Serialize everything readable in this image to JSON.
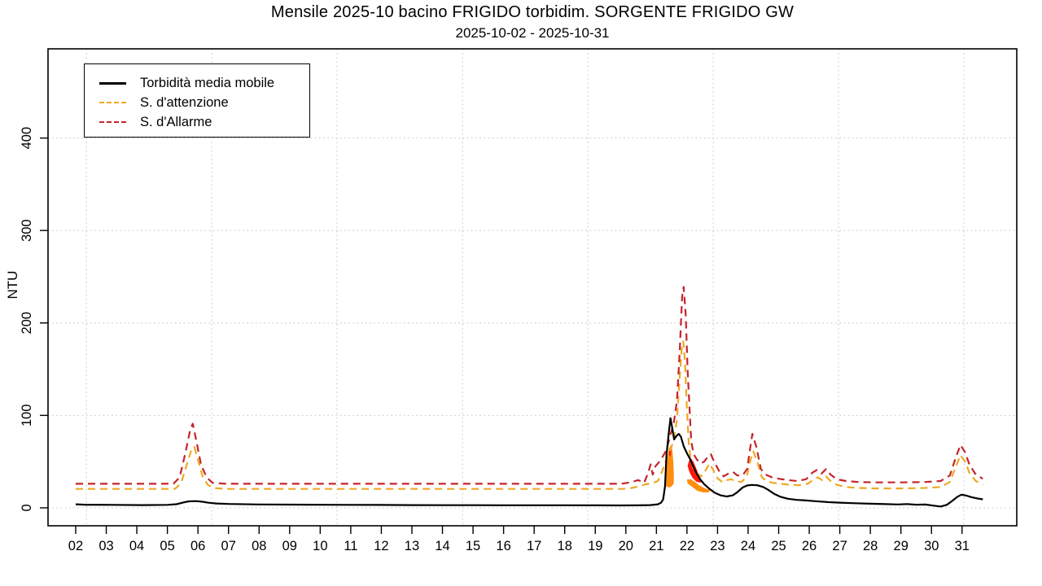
{
  "chart_data": {
    "type": "line",
    "title": "Mensile 2025-10 bacino FRIGIDO torbidim. SORGENTE FRIGIDO GW",
    "subtitle": "2025-10-02 - 2025-10-31",
    "ylabel": "NTU",
    "xlabel": "",
    "x_unit": "day of October 2025",
    "xlim": [
      1.095,
      32.79
    ],
    "ylim": [
      -19.4,
      496.5
    ],
    "x_ticks": {
      "values": [
        2,
        3,
        4,
        5,
        6,
        7,
        8,
        9,
        10,
        11,
        12,
        13,
        14,
        15,
        16,
        17,
        18,
        19,
        20,
        21,
        22,
        23,
        24,
        25,
        26,
        27,
        28,
        29,
        30,
        31
      ],
      "labels": [
        "02",
        "03",
        "04",
        "05",
        "06",
        "07",
        "08",
        "09",
        "10",
        "11",
        "12",
        "13",
        "14",
        "15",
        "16",
        "17",
        "18",
        "19",
        "20",
        "21",
        "22",
        "23",
        "24",
        "25",
        "26",
        "27",
        "28",
        "29",
        "30",
        "31"
      ]
    },
    "y_ticks": {
      "values": [
        0,
        100,
        200,
        300,
        400
      ],
      "labels": [
        "0",
        "100",
        "200",
        "300",
        "400"
      ]
    },
    "grid": {
      "color": "#c8c8c8",
      "x_days": [
        2.35,
        6.45,
        10.55,
        14.66,
        18.76,
        22.86,
        26.96,
        31.06
      ],
      "y_values": [
        0,
        100,
        200,
        300,
        400
      ]
    },
    "series": [
      {
        "name": "S. d'attenzione",
        "color": "#EEA823",
        "dash": "9 6",
        "width": 2.2,
        "points": [
          [
            2.0,
            20.5
          ],
          [
            5.25,
            20.5
          ],
          [
            5.45,
            27
          ],
          [
            5.62,
            45
          ],
          [
            5.78,
            62
          ],
          [
            5.88,
            66
          ],
          [
            6.0,
            52
          ],
          [
            6.15,
            34
          ],
          [
            6.32,
            25
          ],
          [
            6.5,
            21.5
          ],
          [
            6.9,
            20.5
          ],
          [
            19.9,
            20.5
          ],
          [
            20.2,
            21.5
          ],
          [
            20.45,
            23.5
          ],
          [
            20.65,
            25.5
          ],
          [
            20.85,
            26.5
          ],
          [
            21.05,
            29
          ],
          [
            21.17,
            38
          ],
          [
            21.3,
            50
          ],
          [
            21.45,
            62
          ],
          [
            21.57,
            73
          ],
          [
            21.67,
            95
          ],
          [
            21.76,
            140
          ],
          [
            21.84,
            178
          ],
          [
            21.88,
            180
          ],
          [
            21.94,
            155
          ],
          [
            22.0,
            105
          ],
          [
            22.06,
            70
          ],
          [
            22.13,
            50
          ],
          [
            22.22,
            42
          ],
          [
            22.34,
            37
          ],
          [
            22.47,
            34
          ],
          [
            22.6,
            40
          ],
          [
            22.74,
            48
          ],
          [
            22.87,
            40
          ],
          [
            23.0,
            32
          ],
          [
            23.15,
            28
          ],
          [
            23.3,
            30
          ],
          [
            23.45,
            31
          ],
          [
            23.6,
            28.5
          ],
          [
            23.78,
            28
          ],
          [
            23.95,
            33
          ],
          [
            24.08,
            52
          ],
          [
            24.17,
            61
          ],
          [
            24.3,
            50
          ],
          [
            24.45,
            33
          ],
          [
            24.6,
            29
          ],
          [
            24.82,
            27
          ],
          [
            25.05,
            26
          ],
          [
            25.35,
            25
          ],
          [
            25.65,
            24.5
          ],
          [
            25.95,
            26
          ],
          [
            26.15,
            31
          ],
          [
            26.28,
            33
          ],
          [
            26.42,
            30
          ],
          [
            26.55,
            34
          ],
          [
            26.7,
            29
          ],
          [
            26.9,
            25
          ],
          [
            27.2,
            22.5
          ],
          [
            27.6,
            21.5
          ],
          [
            28.2,
            21
          ],
          [
            29.0,
            21
          ],
          [
            29.8,
            21.5
          ],
          [
            30.3,
            22.5
          ],
          [
            30.6,
            28
          ],
          [
            30.8,
            45
          ],
          [
            30.95,
            57
          ],
          [
            31.1,
            50
          ],
          [
            31.25,
            37
          ],
          [
            31.45,
            29
          ],
          [
            31.68,
            25
          ]
        ]
      },
      {
        "name": "S. d'Allarme",
        "color": "#C5242B",
        "dash": "9 6",
        "width": 2.2,
        "points": [
          [
            2.0,
            26
          ],
          [
            5.2,
            26
          ],
          [
            5.4,
            33
          ],
          [
            5.58,
            58
          ],
          [
            5.75,
            85
          ],
          [
            5.83,
            91
          ],
          [
            5.95,
            72
          ],
          [
            6.1,
            47
          ],
          [
            6.28,
            33
          ],
          [
            6.48,
            27
          ],
          [
            6.9,
            26
          ],
          [
            19.85,
            26
          ],
          [
            20.15,
            27.5
          ],
          [
            20.4,
            30
          ],
          [
            20.6,
            27
          ],
          [
            20.73,
            38
          ],
          [
            20.81,
            47
          ],
          [
            20.88,
            36
          ],
          [
            20.97,
            45
          ],
          [
            21.1,
            50
          ],
          [
            21.2,
            55
          ],
          [
            21.32,
            62
          ],
          [
            21.45,
            78
          ],
          [
            21.57,
            92
          ],
          [
            21.67,
            115
          ],
          [
            21.76,
            168
          ],
          [
            21.84,
            228
          ],
          [
            21.89,
            239
          ],
          [
            21.96,
            208
          ],
          [
            22.02,
            150
          ],
          [
            22.08,
            110
          ],
          [
            22.14,
            72
          ],
          [
            22.22,
            58
          ],
          [
            22.33,
            52
          ],
          [
            22.45,
            48
          ],
          [
            22.56,
            50
          ],
          [
            22.68,
            55
          ],
          [
            22.78,
            58
          ],
          [
            22.9,
            49
          ],
          [
            23.05,
            40
          ],
          [
            23.2,
            34
          ],
          [
            23.35,
            37
          ],
          [
            23.5,
            39
          ],
          [
            23.65,
            35
          ],
          [
            23.82,
            35
          ],
          [
            23.97,
            42
          ],
          [
            24.07,
            65
          ],
          [
            24.14,
            80
          ],
          [
            24.27,
            66
          ],
          [
            24.42,
            42
          ],
          [
            24.57,
            36
          ],
          [
            24.78,
            33
          ],
          [
            25.0,
            31.5
          ],
          [
            25.3,
            30
          ],
          [
            25.6,
            29
          ],
          [
            25.9,
            31
          ],
          [
            26.1,
            38
          ],
          [
            26.25,
            41
          ],
          [
            26.4,
            37
          ],
          [
            26.55,
            42
          ],
          [
            26.7,
            36
          ],
          [
            26.9,
            31
          ],
          [
            27.2,
            29
          ],
          [
            27.6,
            28
          ],
          [
            28.2,
            27.5
          ],
          [
            29.0,
            27.5
          ],
          [
            29.8,
            28
          ],
          [
            30.3,
            29
          ],
          [
            30.6,
            35
          ],
          [
            30.8,
            55
          ],
          [
            30.95,
            68
          ],
          [
            31.1,
            60
          ],
          [
            31.25,
            46
          ],
          [
            31.45,
            36
          ],
          [
            31.68,
            31.5
          ]
        ]
      },
      {
        "name": "Torbidità media mobile",
        "color": "#000000",
        "dash": null,
        "width": 2.2,
        "points": [
          [
            2.0,
            3.8
          ],
          [
            2.3,
            3.4
          ],
          [
            3.2,
            3.2
          ],
          [
            4.2,
            3.0
          ],
          [
            5.0,
            3.2
          ],
          [
            5.3,
            3.9
          ],
          [
            5.5,
            5.6
          ],
          [
            5.7,
            7.0
          ],
          [
            5.95,
            7.3
          ],
          [
            6.15,
            6.6
          ],
          [
            6.35,
            5.5
          ],
          [
            6.6,
            4.7
          ],
          [
            7.0,
            4.2
          ],
          [
            8.0,
            3.7
          ],
          [
            9.0,
            3.5
          ],
          [
            10.0,
            3.3
          ],
          [
            11.0,
            3.2
          ],
          [
            12.0,
            3.1
          ],
          [
            13.0,
            3.0
          ],
          [
            14.0,
            2.9
          ],
          [
            15.0,
            2.9
          ],
          [
            16.0,
            2.8
          ],
          [
            17.0,
            2.8
          ],
          [
            18.0,
            2.8
          ],
          [
            19.0,
            2.7
          ],
          [
            19.8,
            2.6
          ],
          [
            20.4,
            2.7
          ],
          [
            20.8,
            3.0
          ],
          [
            21.05,
            3.8
          ],
          [
            21.15,
            5.5
          ],
          [
            21.22,
            9.0
          ],
          [
            21.28,
            23.0
          ],
          [
            21.33,
            57.0
          ],
          [
            21.4,
            80.0
          ],
          [
            21.46,
            97.0
          ],
          [
            21.52,
            86.0
          ],
          [
            21.58,
            74.0
          ],
          [
            21.65,
            77.5
          ],
          [
            21.73,
            80.0
          ],
          [
            21.8,
            77.0
          ],
          [
            21.9,
            66.0
          ],
          [
            22.0,
            59.0
          ],
          [
            22.1,
            53.0
          ],
          [
            22.2,
            45.0
          ],
          [
            22.32,
            37.0
          ],
          [
            22.45,
            30.0
          ],
          [
            22.58,
            25.0
          ],
          [
            22.72,
            21.0
          ],
          [
            22.9,
            16.5
          ],
          [
            23.1,
            13.5
          ],
          [
            23.3,
            12.3
          ],
          [
            23.5,
            13.5
          ],
          [
            23.65,
            17.0
          ],
          [
            23.82,
            22.0
          ],
          [
            23.97,
            24.2
          ],
          [
            24.12,
            24.8
          ],
          [
            24.3,
            24.4
          ],
          [
            24.5,
            22.5
          ],
          [
            24.65,
            19.6
          ],
          [
            24.85,
            15.2
          ],
          [
            25.05,
            12.0
          ],
          [
            25.3,
            9.8
          ],
          [
            25.6,
            8.6
          ],
          [
            25.9,
            8.0
          ],
          [
            26.2,
            7.2
          ],
          [
            26.6,
            6.2
          ],
          [
            27.0,
            5.6
          ],
          [
            27.5,
            5.0
          ],
          [
            28.0,
            4.5
          ],
          [
            28.5,
            4.0
          ],
          [
            28.9,
            3.7
          ],
          [
            29.2,
            4.1
          ],
          [
            29.5,
            3.4
          ],
          [
            29.8,
            3.6
          ],
          [
            30.05,
            2.4
          ],
          [
            30.3,
            1.5
          ],
          [
            30.5,
            3.2
          ],
          [
            30.68,
            7.5
          ],
          [
            30.85,
            12.0
          ],
          [
            30.98,
            14.2
          ],
          [
            31.15,
            13.2
          ],
          [
            31.3,
            11.6
          ],
          [
            31.5,
            10.2
          ],
          [
            31.68,
            9.2
          ]
        ]
      }
    ],
    "exceedance_fills": [
      {
        "name": "attention-exceedance-fill",
        "color": "#FF8E10",
        "points": [
          [
            22.0,
            30.8
          ],
          [
            22.13,
            30.8
          ],
          [
            22.26,
            28.1
          ],
          [
            22.39,
            24.6
          ],
          [
            22.53,
            22.0
          ],
          [
            22.66,
            20.2
          ],
          [
            22.77,
            19.3
          ],
          [
            22.71,
            16.7
          ],
          [
            22.53,
            16.7
          ],
          [
            22.34,
            18.4
          ],
          [
            22.16,
            22.9
          ],
          [
            22.02,
            26.4
          ]
        ]
      },
      {
        "name": "alarm-exceedance-fill",
        "color": "#FB190D",
        "points": [
          [
            22.02,
            45.7
          ],
          [
            22.08,
            52.0
          ],
          [
            22.13,
            53.5
          ],
          [
            22.21,
            50.0
          ],
          [
            22.31,
            42.2
          ],
          [
            22.39,
            35.2
          ],
          [
            22.47,
            29.9
          ],
          [
            22.45,
            27.3
          ],
          [
            22.31,
            28.1
          ],
          [
            22.18,
            32.5
          ],
          [
            22.08,
            38.7
          ]
        ]
      },
      {
        "name": "attention-exceedance-fill",
        "color": "#FF8E10",
        "points": [
          [
            21.31,
            23.7
          ],
          [
            21.33,
            41.3
          ],
          [
            21.36,
            55.4
          ],
          [
            21.41,
            64.2
          ],
          [
            21.47,
            67.8
          ],
          [
            21.52,
            62.5
          ],
          [
            21.55,
            51.0
          ],
          [
            21.57,
            37.8
          ],
          [
            21.57,
            26.4
          ],
          [
            21.49,
            22.9
          ],
          [
            21.39,
            22.0
          ]
        ]
      },
      {
        "name": "alarm-exceedance-fill",
        "color": "#FB190D",
        "points": [
          [
            21.41,
            58.0
          ],
          [
            21.44,
            65.0
          ],
          [
            21.49,
            63.0
          ],
          [
            21.46,
            55.0
          ]
        ]
      }
    ],
    "legend": {
      "entries": [
        {
          "label": "Torbidità media mobile",
          "color": "#000000",
          "dash": false
        },
        {
          "label": "S. d'attenzione",
          "color": "#EEA823",
          "dash": true
        },
        {
          "label": "S. d'Allarme",
          "color": "#C5242B",
          "dash": true
        }
      ]
    }
  }
}
